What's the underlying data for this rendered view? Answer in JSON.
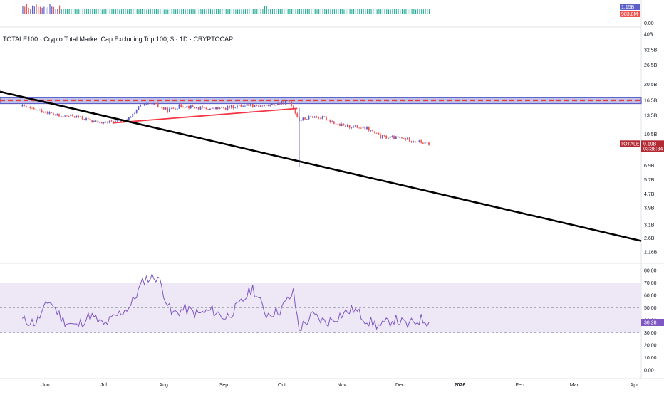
{
  "title": "TOTALE100 · Crypto Total Market Cap Excluding Top 100, $ · 1D · CRYPTOCAP",
  "chart_data": [
    {
      "type": "bar",
      "panel": "volume",
      "axis_labels": [
        "1.15B",
        "983.8M",
        "0.00"
      ],
      "volume_label": "983.8M",
      "volume_color": "#22ab94"
    },
    {
      "type": "candlestick",
      "panel": "price",
      "symbol": "TOTALE100",
      "scale": "log",
      "ylim_billions": [
        2.0,
        45
      ],
      "y_tick_labels": [
        "40B",
        "32.5B",
        "26.5B",
        "20.5B",
        "16.5B",
        "13.5B",
        "10.5B",
        "9.19B",
        "6.9B",
        "5.7B",
        "4.7B",
        "3.9B",
        "3.1B",
        "2.6B",
        "2.16B"
      ],
      "x_tick_labels": [
        "Jun",
        "Jul",
        "Aug",
        "Sep",
        "Oct",
        "Nov",
        "Dec",
        "2026",
        "Feb",
        "Mar",
        "Apr"
      ],
      "x_tick_dates": [
        "2025-06-01",
        "2025-07-01",
        "2025-08-01",
        "2025-09-01",
        "2025-10-01",
        "2025-11-01",
        "2025-12-01",
        "2026-01-01",
        "2026-02-01",
        "2026-03-01",
        "2026-04-01"
      ],
      "last_price_label": "9.19B",
      "countdown_label": "03:38:34",
      "price_label_color": "#b22833",
      "up_color": "#26a69a",
      "down_color": "#ef5350",
      "close_series": [
        {
          "date": "2025-05-18",
          "close": 15.5
        },
        {
          "date": "2025-05-25",
          "close": 14.6
        },
        {
          "date": "2025-06-01",
          "close": 14.2
        },
        {
          "date": "2025-06-08",
          "close": 13.3
        },
        {
          "date": "2025-06-15",
          "close": 13.4
        },
        {
          "date": "2025-06-22",
          "close": 12.8
        },
        {
          "date": "2025-06-29",
          "close": 12.2
        },
        {
          "date": "2025-07-06",
          "close": 12.4
        },
        {
          "date": "2025-07-13",
          "close": 12.5
        },
        {
          "date": "2025-07-20",
          "close": 15.4
        },
        {
          "date": "2025-07-27",
          "close": 15.6
        },
        {
          "date": "2025-08-03",
          "close": 14.4
        },
        {
          "date": "2025-08-10",
          "close": 15.4
        },
        {
          "date": "2025-08-17",
          "close": 15.0
        },
        {
          "date": "2025-08-24",
          "close": 14.7
        },
        {
          "date": "2025-08-31",
          "close": 14.8
        },
        {
          "date": "2025-09-07",
          "close": 15.2
        },
        {
          "date": "2025-09-14",
          "close": 15.6
        },
        {
          "date": "2025-09-21",
          "close": 15.3
        },
        {
          "date": "2025-09-28",
          "close": 15.6
        },
        {
          "date": "2025-10-05",
          "close": 16.3
        },
        {
          "date": "2025-10-10",
          "close": 12.6
        },
        {
          "date": "2025-10-17",
          "close": 13.3
        },
        {
          "date": "2025-10-24",
          "close": 12.9
        },
        {
          "date": "2025-10-31",
          "close": 11.8
        },
        {
          "date": "2025-11-07",
          "close": 11.6
        },
        {
          "date": "2025-11-14",
          "close": 11.3
        },
        {
          "date": "2025-11-21",
          "close": 10.1
        },
        {
          "date": "2025-11-28",
          "close": 10.0
        },
        {
          "date": "2025-12-05",
          "close": 9.8
        },
        {
          "date": "2025-12-12",
          "close": 9.4
        },
        {
          "date": "2025-12-16",
          "close": 9.19
        }
      ],
      "october_wick_low": 6.75,
      "resistance_zone": {
        "low": 15.8,
        "high": 17.2,
        "dashed_level": 16.5,
        "color": "#5b5fc7",
        "dash_color": "#e53935"
      },
      "rising_trendline": {
        "start": {
          "date": "2025-07-06",
          "value": 12.2
        },
        "end": {
          "date": "2025-10-09",
          "value": 14.8
        },
        "color": "#f23645"
      },
      "descending_trendline": {
        "start": {
          "date": "2025-05-18",
          "value": 17.5
        },
        "end": {
          "date": "2026-04-05",
          "value": 2.5
        },
        "color": "#000000"
      }
    },
    {
      "type": "line",
      "panel": "rsi",
      "ylim": [
        0,
        80
      ],
      "y_tick_labels": [
        "80.00",
        "70.00",
        "60.00",
        "50.00",
        "40.00",
        "30.00",
        "20.00",
        "10.00",
        "0.00"
      ],
      "upper_band": 70,
      "mid_band": 50,
      "lower_band": 30,
      "band_fill": "#ede7f6",
      "line_color": "#7e57c2",
      "last_value_label": "38.28",
      "series": [
        {
          "date": "2025-05-20",
          "value": 40
        },
        {
          "date": "2025-05-27",
          "value": 38
        },
        {
          "date": "2025-06-03",
          "value": 56
        },
        {
          "date": "2025-06-10",
          "value": 40
        },
        {
          "date": "2025-06-17",
          "value": 35
        },
        {
          "date": "2025-06-24",
          "value": 44
        },
        {
          "date": "2025-07-01",
          "value": 36
        },
        {
          "date": "2025-07-08",
          "value": 44
        },
        {
          "date": "2025-07-15",
          "value": 52
        },
        {
          "date": "2025-07-22",
          "value": 73
        },
        {
          "date": "2025-07-29",
          "value": 75
        },
        {
          "date": "2025-08-05",
          "value": 45
        },
        {
          "date": "2025-08-12",
          "value": 49
        },
        {
          "date": "2025-08-19",
          "value": 45
        },
        {
          "date": "2025-08-26",
          "value": 48
        },
        {
          "date": "2025-09-02",
          "value": 42
        },
        {
          "date": "2025-09-09",
          "value": 52
        },
        {
          "date": "2025-09-16",
          "value": 66
        },
        {
          "date": "2025-09-23",
          "value": 45
        },
        {
          "date": "2025-09-30",
          "value": 48
        },
        {
          "date": "2025-10-07",
          "value": 62
        },
        {
          "date": "2025-10-10",
          "value": 33
        },
        {
          "date": "2025-10-17",
          "value": 44
        },
        {
          "date": "2025-10-24",
          "value": 38
        },
        {
          "date": "2025-10-31",
          "value": 44
        },
        {
          "date": "2025-11-07",
          "value": 49
        },
        {
          "date": "2025-11-14",
          "value": 40
        },
        {
          "date": "2025-11-21",
          "value": 35
        },
        {
          "date": "2025-11-28",
          "value": 41
        },
        {
          "date": "2025-12-05",
          "value": 36
        },
        {
          "date": "2025-12-12",
          "value": 41
        },
        {
          "date": "2025-12-16",
          "value": 38.28
        }
      ]
    }
  ]
}
